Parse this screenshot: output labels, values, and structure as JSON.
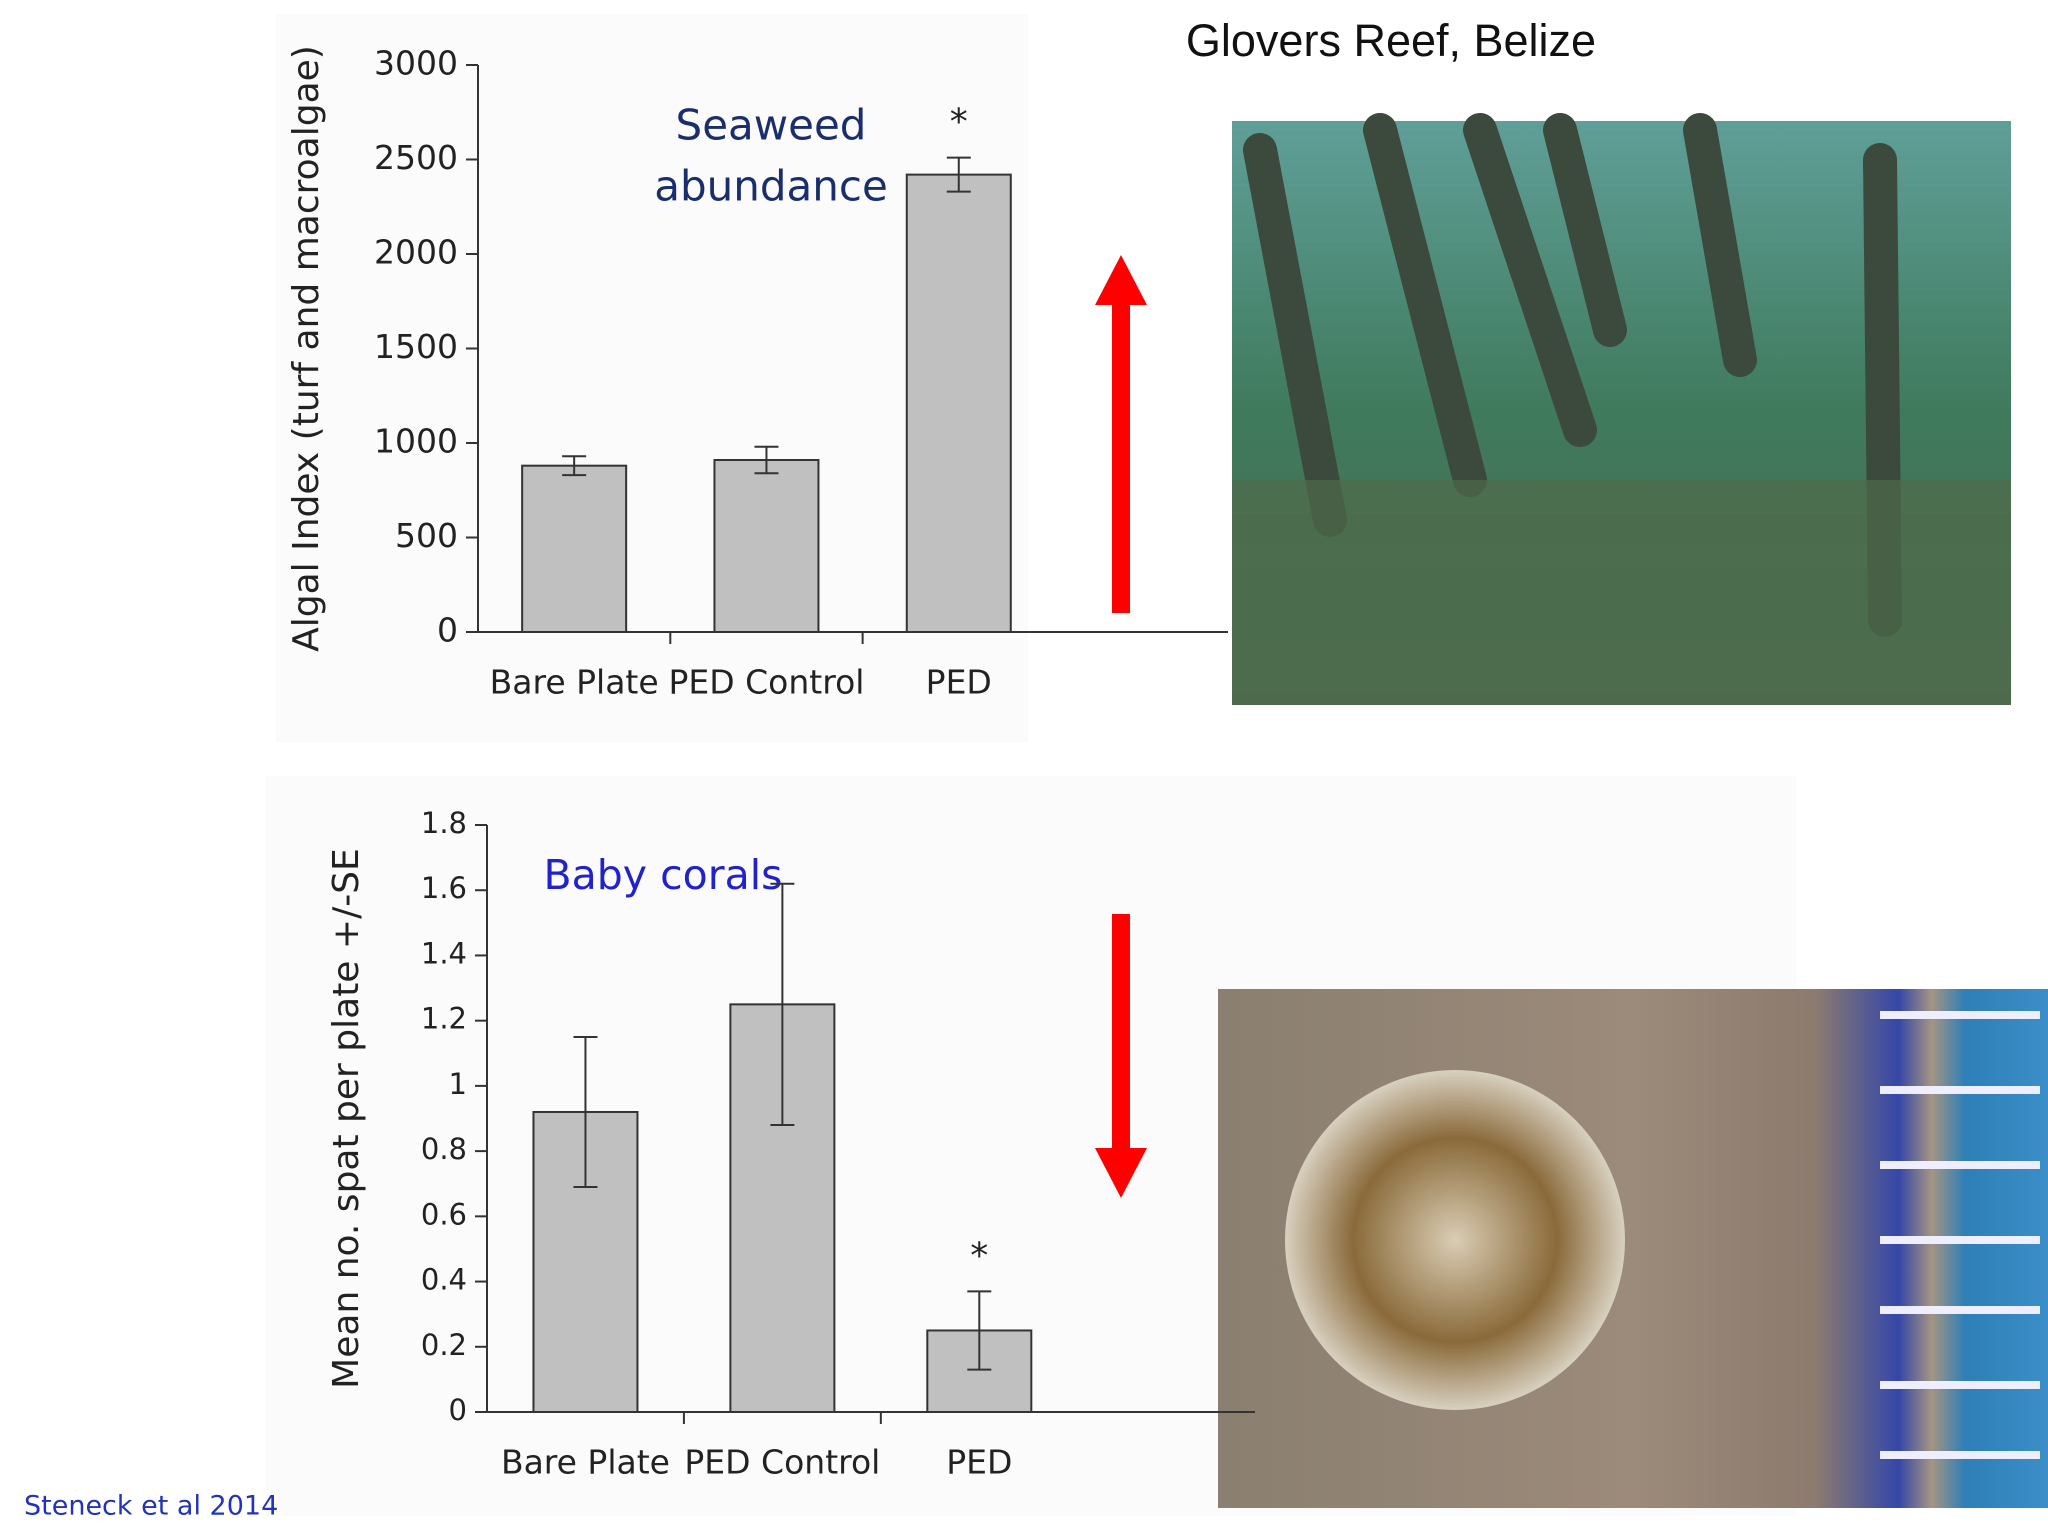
{
  "title": "Glovers Reef, Belize",
  "citation": "Steneck et al 2014",
  "chart_data": [
    {
      "type": "bar",
      "annotation": [
        "Seaweed",
        "abundance"
      ],
      "ylabel": "Algal Index (turf and macroalgae)",
      "categories": [
        "Bare Plate",
        "PED Control",
        "PED"
      ],
      "values": [
        880,
        910,
        2420
      ],
      "errors": [
        50,
        70,
        90
      ],
      "color": "#c0c0c0",
      "ylim": [
        0,
        3000
      ],
      "yticks": [
        0,
        500,
        1000,
        1500,
        2000,
        2500,
        3000
      ],
      "significance_label": "*",
      "significant": "PED"
    },
    {
      "type": "bar",
      "annotation": [
        "Baby corals"
      ],
      "ylabel": "Mean no. spat per plate +/-SE",
      "categories": [
        "Bare Plate",
        "PED Control",
        "PED"
      ],
      "values": [
        0.92,
        1.25,
        0.25
      ],
      "errors": [
        0.23,
        0.37,
        0.12
      ],
      "color": "#c0c0c0",
      "ylim": [
        0,
        1.8
      ],
      "yticks": [
        0,
        0.2,
        0.4,
        0.6,
        0.8,
        1,
        1.2,
        1.4,
        1.6,
        1.8
      ],
      "significance_label": "*",
      "significant": "PED"
    }
  ]
}
